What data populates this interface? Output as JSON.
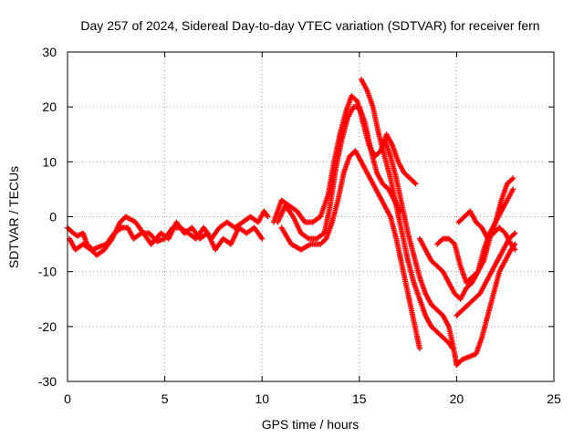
{
  "chart_data": {
    "type": "scatter",
    "title": "Day 257 of 2024, Sidereal Day-to-day VTEC variation (SDTVAR) for receiver fern",
    "xlabel": "GPS time / hours",
    "ylabel": "SDTVAR / TECUs",
    "xlim": [
      0,
      25
    ],
    "ylim": [
      -30,
      30
    ],
    "xticks": [
      0,
      5,
      10,
      15,
      20,
      25
    ],
    "xtick_labels": [
      "0",
      "5",
      "10",
      "15",
      "20",
      "25"
    ],
    "yticks": [
      -30,
      -20,
      -10,
      0,
      10,
      20,
      30
    ],
    "ytick_labels": [
      "-30",
      "-20",
      "-10",
      "0",
      "10",
      "20",
      "30"
    ],
    "grid": true,
    "marker": "plus",
    "series": [
      {
        "name": "track-1",
        "color": "#ff0000",
        "x": [
          0.0,
          0.3,
          0.5,
          0.8,
          1.0,
          1.3,
          1.6,
          2.0,
          2.4,
          2.8,
          3.1,
          3.4,
          3.8,
          4.2,
          4.6,
          5.0,
          5.4,
          5.8,
          6.2,
          6.6,
          7.0,
          7.4,
          7.8,
          8.2,
          8.6,
          9.0,
          9.4,
          9.8,
          10.1,
          10.3
        ],
        "y": [
          -2,
          -3,
          -3.5,
          -3,
          -5,
          -6,
          -5.5,
          -5,
          -3,
          -2,
          -2,
          -4,
          -3,
          -3,
          -4.5,
          -4,
          -2,
          -2,
          -3,
          -4,
          -2,
          -4,
          -2,
          -1,
          -2,
          -1,
          0,
          -1,
          1,
          0
        ]
      },
      {
        "name": "track-2",
        "color": "#ff0000",
        "x": [
          0.1,
          0.4,
          0.8,
          1.2,
          1.5,
          1.9,
          2.3,
          2.7,
          3.0,
          3.5,
          3.9,
          4.3,
          4.8,
          5.2,
          5.6,
          6.0,
          6.4,
          6.8,
          7.2,
          7.6,
          8.0,
          8.4,
          8.8,
          9.2,
          9.6,
          10.0
        ],
        "y": [
          -4,
          -6,
          -5,
          -6,
          -7,
          -6,
          -4,
          -1,
          0,
          -1,
          -3,
          -5,
          -3,
          -4,
          -1,
          -3,
          -2,
          -4,
          -3,
          -6,
          -4,
          -5,
          -2,
          -3,
          -2,
          -4
        ]
      },
      {
        "name": "track-3",
        "color": "#ff0000",
        "x": [
          10.6,
          11.0,
          11.4,
          11.8,
          12.2,
          12.6,
          13.0,
          13.4,
          13.7,
          14.0,
          14.3,
          14.6,
          14.9,
          15.2,
          15.5,
          15.8,
          16.1,
          16.4,
          16.7,
          17.0,
          17.3,
          17.6,
          17.9
        ],
        "y": [
          -1,
          3,
          2,
          1,
          -1,
          -1,
          0,
          4,
          10,
          15,
          19,
          22,
          21,
          17,
          13,
          11,
          12,
          15,
          13,
          10,
          8,
          7,
          6
        ]
      },
      {
        "name": "track-4",
        "color": "#ff0000",
        "x": [
          10.8,
          11.2,
          11.6,
          12.0,
          12.4,
          12.8,
          13.2,
          13.5,
          13.8,
          14.1,
          14.4,
          14.7,
          15.0,
          15.3,
          15.6,
          15.9,
          16.2,
          16.5,
          16.8,
          17.1
        ],
        "y": [
          -1,
          2,
          0,
          -3,
          -4,
          -4,
          -3,
          2,
          9,
          14,
          18,
          20,
          20,
          17,
          12,
          8,
          6,
          5,
          3,
          1
        ]
      },
      {
        "name": "track-5",
        "color": "#ff0000",
        "x": [
          11.0,
          11.5,
          12.0,
          12.5,
          13.0,
          13.3,
          13.6,
          13.9,
          14.2,
          14.5,
          14.8,
          15.1,
          15.4,
          15.7,
          16.0,
          16.3,
          16.6,
          16.9,
          17.2,
          17.5,
          17.8,
          18.1
        ],
        "y": [
          -2,
          -5,
          -6,
          -5,
          -5,
          -4,
          -1,
          3,
          8,
          11,
          12,
          10,
          8,
          6,
          4,
          2,
          0,
          -4,
          -9,
          -14,
          -19,
          -24
        ]
      },
      {
        "name": "track-6",
        "color": "#ff0000",
        "x": [
          15.1,
          15.4,
          15.7,
          16.0,
          16.3,
          16.6,
          16.9,
          17.2,
          17.5,
          17.8,
          18.1,
          18.4,
          18.7,
          19.0,
          19.3,
          19.6,
          19.8
        ],
        "y": [
          25,
          23,
          20,
          15,
          11,
          7,
          2,
          -3,
          -8,
          -12,
          -15,
          -18,
          -20,
          -21,
          -22,
          -23,
          -24
        ]
      },
      {
        "name": "track-7",
        "color": "#ff0000",
        "x": [
          16.3,
          16.6,
          16.9,
          17.2,
          17.5,
          17.8,
          18.1,
          18.4,
          18.7,
          19.0,
          19.3,
          19.6,
          19.9,
          20.0
        ],
        "y": [
          14,
          11,
          7,
          2,
          -3,
          -7,
          -11,
          -14,
          -16,
          -17,
          -18,
          -20,
          -25,
          -27
        ]
      },
      {
        "name": "track-8",
        "color": "#ff0000",
        "x": [
          18.1,
          18.4,
          18.7,
          19.0,
          19.3,
          19.6,
          19.9,
          20.2,
          20.5,
          20.8,
          21.1,
          21.4,
          21.7,
          22.0,
          22.3,
          22.6,
          22.9
        ],
        "y": [
          -4,
          -6,
          -8,
          -9,
          -10,
          -12,
          -14,
          -15,
          -13,
          -12,
          -10,
          -6,
          -3,
          -1,
          1,
          3,
          5
        ]
      },
      {
        "name": "track-9",
        "color": "#ff0000",
        "x": [
          19.0,
          19.3,
          19.6,
          19.9,
          20.2,
          20.5,
          20.8,
          21.1,
          21.4,
          21.7,
          22.0,
          22.3,
          22.6,
          22.9
        ],
        "y": [
          -5,
          -4,
          -4,
          -5,
          -9,
          -12,
          -11,
          -10,
          -8,
          -4,
          -1,
          3,
          6,
          7
        ]
      },
      {
        "name": "track-10",
        "color": "#ff0000",
        "x": [
          20.1,
          20.4,
          20.7,
          21.0,
          21.3,
          21.6,
          21.9,
          22.2,
          22.5,
          22.8,
          23.0
        ],
        "y": [
          -1,
          0,
          1,
          -1,
          -2,
          -4,
          -3,
          -2,
          -3,
          -5,
          -6
        ]
      },
      {
        "name": "track-11",
        "color": "#ff0000",
        "x": [
          20.0,
          20.3,
          20.6,
          20.9,
          21.2,
          21.5,
          21.8,
          22.1,
          22.4,
          22.7,
          23.0
        ],
        "y": [
          -18,
          -17,
          -16,
          -15,
          -14,
          -12,
          -10,
          -8,
          -6,
          -4,
          -3
        ]
      },
      {
        "name": "track-12",
        "color": "#ff0000",
        "x": [
          20.0,
          20.3,
          21.0,
          21.3,
          21.6,
          21.9,
          22.2,
          22.5,
          22.8,
          23.0
        ],
        "y": [
          -27,
          -26,
          -25,
          -22,
          -18,
          -14,
          -10,
          -8,
          -6,
          -5
        ]
      }
    ]
  }
}
